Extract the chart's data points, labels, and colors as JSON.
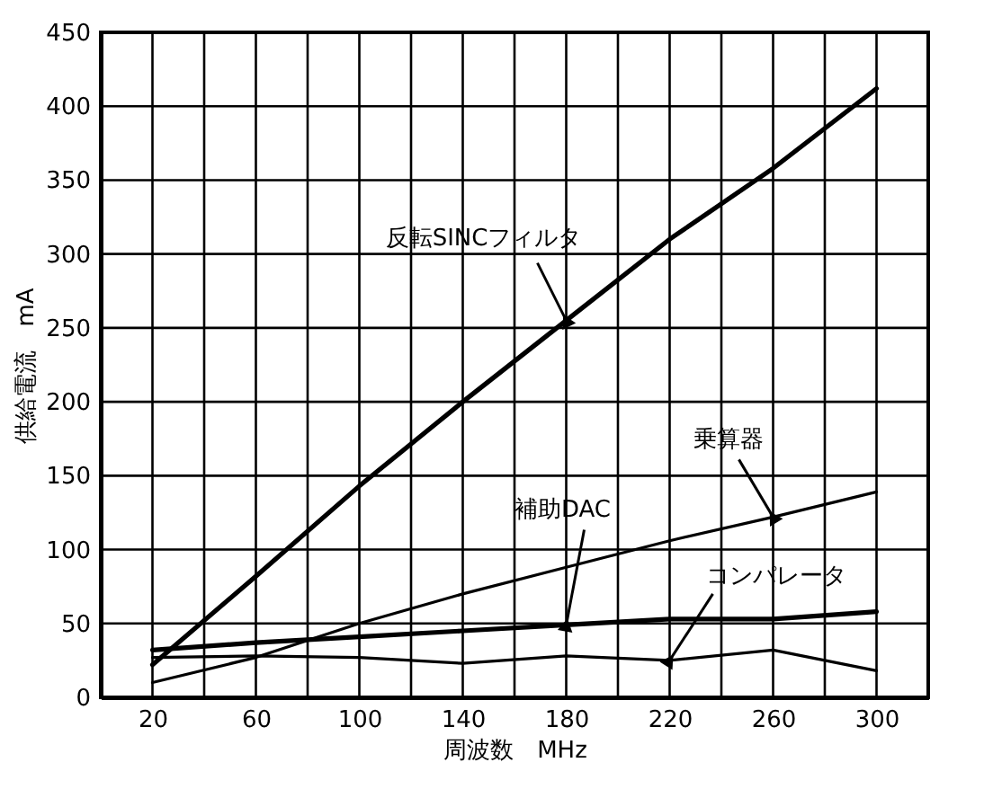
{
  "chart_data": {
    "type": "line",
    "xlabel": "周波数　MHz",
    "ylabel": "供給電流　mA",
    "x": [
      20,
      60,
      100,
      140,
      180,
      220,
      260,
      300
    ],
    "series": [
      {
        "name": "反転SINCフィルタ",
        "color": "#000000",
        "values": [
          22,
          82,
          143,
          200,
          255,
          310,
          358,
          412
        ]
      },
      {
        "name": "乗算器",
        "color": "#000000",
        "values": [
          10,
          27,
          50,
          70,
          88,
          106,
          122,
          139
        ]
      },
      {
        "name": "補助DAC",
        "color": "#000000",
        "values": [
          32,
          37,
          41,
          45,
          49,
          53,
          53,
          58
        ]
      },
      {
        "name": "コンパレータ",
        "color": "#000000",
        "values": [
          27,
          28,
          27,
          23,
          28,
          25,
          32,
          18
        ]
      }
    ],
    "xlim": [
      0,
      320
    ],
    "ylim": [
      0,
      450
    ],
    "xticks": [
      20,
      {
        "value": 40,
        "label": null
      },
      60,
      {
        "value": 80,
        "label": null
      },
      100,
      {
        "value": 120,
        "label": null
      },
      140,
      {
        "value": 160,
        "label": null
      },
      180,
      {
        "value": 200,
        "label": null
      },
      220,
      {
        "value": 240,
        "label": null
      },
      260,
      {
        "value": 280,
        "label": null
      },
      300
    ],
    "yticks": [
      0,
      50,
      100,
      150,
      200,
      250,
      300,
      350,
      400,
      450
    ],
    "grid": true,
    "legend": false,
    "marker": "none",
    "line_style": "solid"
  }
}
